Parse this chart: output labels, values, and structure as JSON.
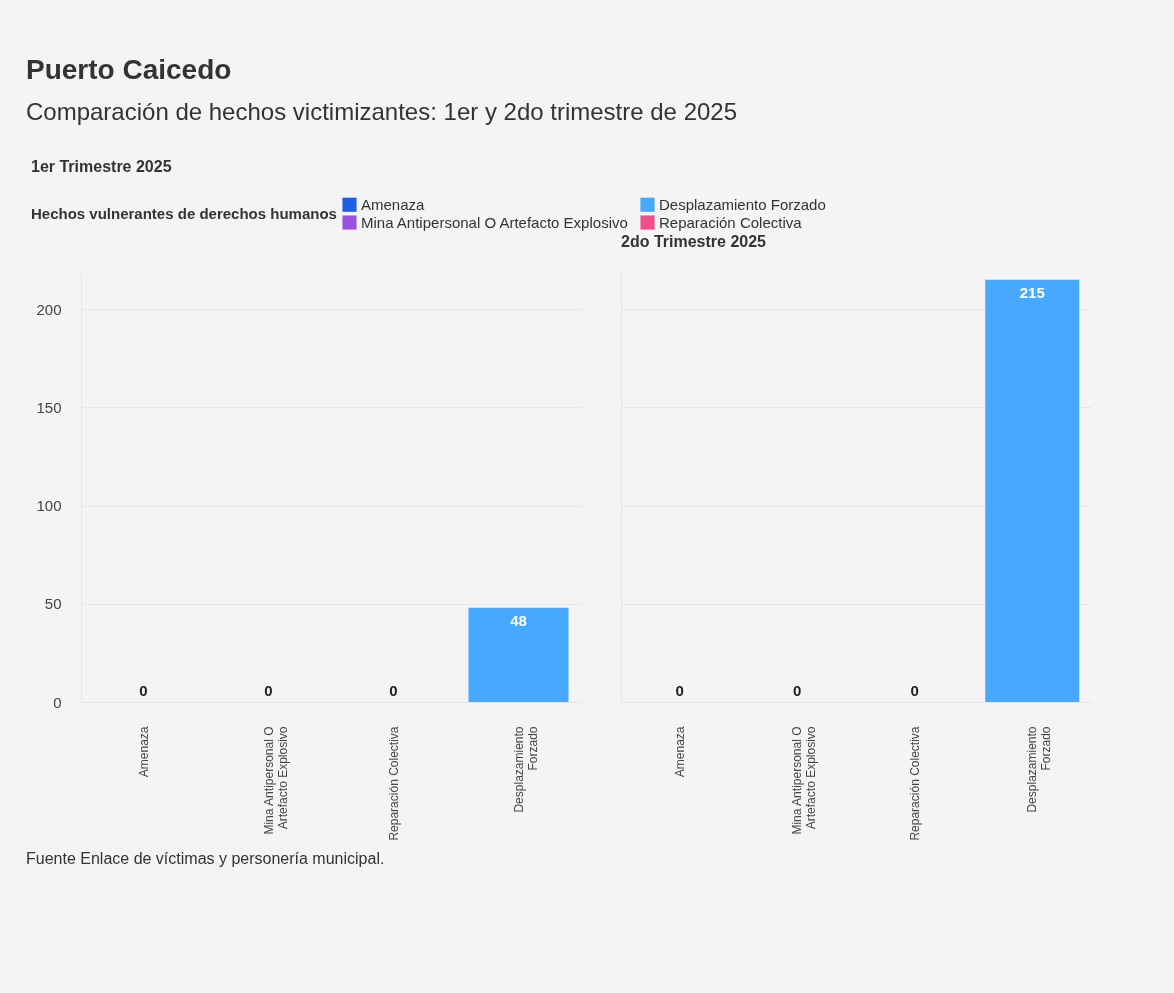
{
  "chart_data": [
    {
      "type": "bar",
      "title": "1er Trimestre 2025",
      "annotations": [
        "Puerto Caicedo",
        "Comparación de hechos victimizantes: 1er y 2do trimestre de 2025",
        "Fuente Enlace de víctimas y personería municipal."
      ],
      "legend_title": "Hechos vulnerantes de derechos humanos",
      "legend": "top",
      "categories": [
        "Amenaza",
        "Mina Antipersonal O Artefacto Explosivo",
        "Reparación Colectiva",
        "Desplazamiento Forzado"
      ],
      "series": [
        {
          "name": "Amenaza",
          "color": "#1f5ee0",
          "values": [
            0,
            null,
            null,
            null
          ]
        },
        {
          "name": "Desplazamiento Forzado",
          "color": "#47a8ff",
          "values": [
            null,
            null,
            null,
            48
          ]
        },
        {
          "name": "Mina Antipersonal O Artefacto Explosivo",
          "color": "#9b51e0",
          "values": [
            null,
            0,
            null,
            null
          ]
        },
        {
          "name": "Reparación Colectiva",
          "color": "#f0508a",
          "values": [
            null,
            null,
            0,
            null
          ]
        }
      ],
      "ylim": [
        0,
        219
      ],
      "yticks": [
        0,
        50,
        100,
        150,
        200
      ],
      "grid": "y",
      "data_labels": true
    },
    {
      "type": "bar",
      "title": "2do Trimestre 2025",
      "categories": [
        "Amenaza",
        "Mina Antipersonal O Artefacto Explosivo",
        "Reparación Colectiva",
        "Desplazamiento Forzado"
      ],
      "series": [
        {
          "color": "#1f5ee0",
          "values": [
            0,
            null,
            null,
            null
          ]
        },
        {
          "color": "#47a8ff",
          "values": [
            null,
            null,
            null,
            215
          ]
        },
        {
          "color": "#9b51e0",
          "values": [
            null,
            0,
            null,
            null
          ]
        },
        {
          "color": "#f0508a",
          "values": [
            null,
            null,
            0,
            null
          ]
        }
      ],
      "ylim": [
        0,
        219
      ],
      "yticks": [
        0,
        50,
        100,
        150,
        200
      ],
      "grid": "y",
      "data_labels": true,
      "tick_labels": "x"
    }
  ]
}
